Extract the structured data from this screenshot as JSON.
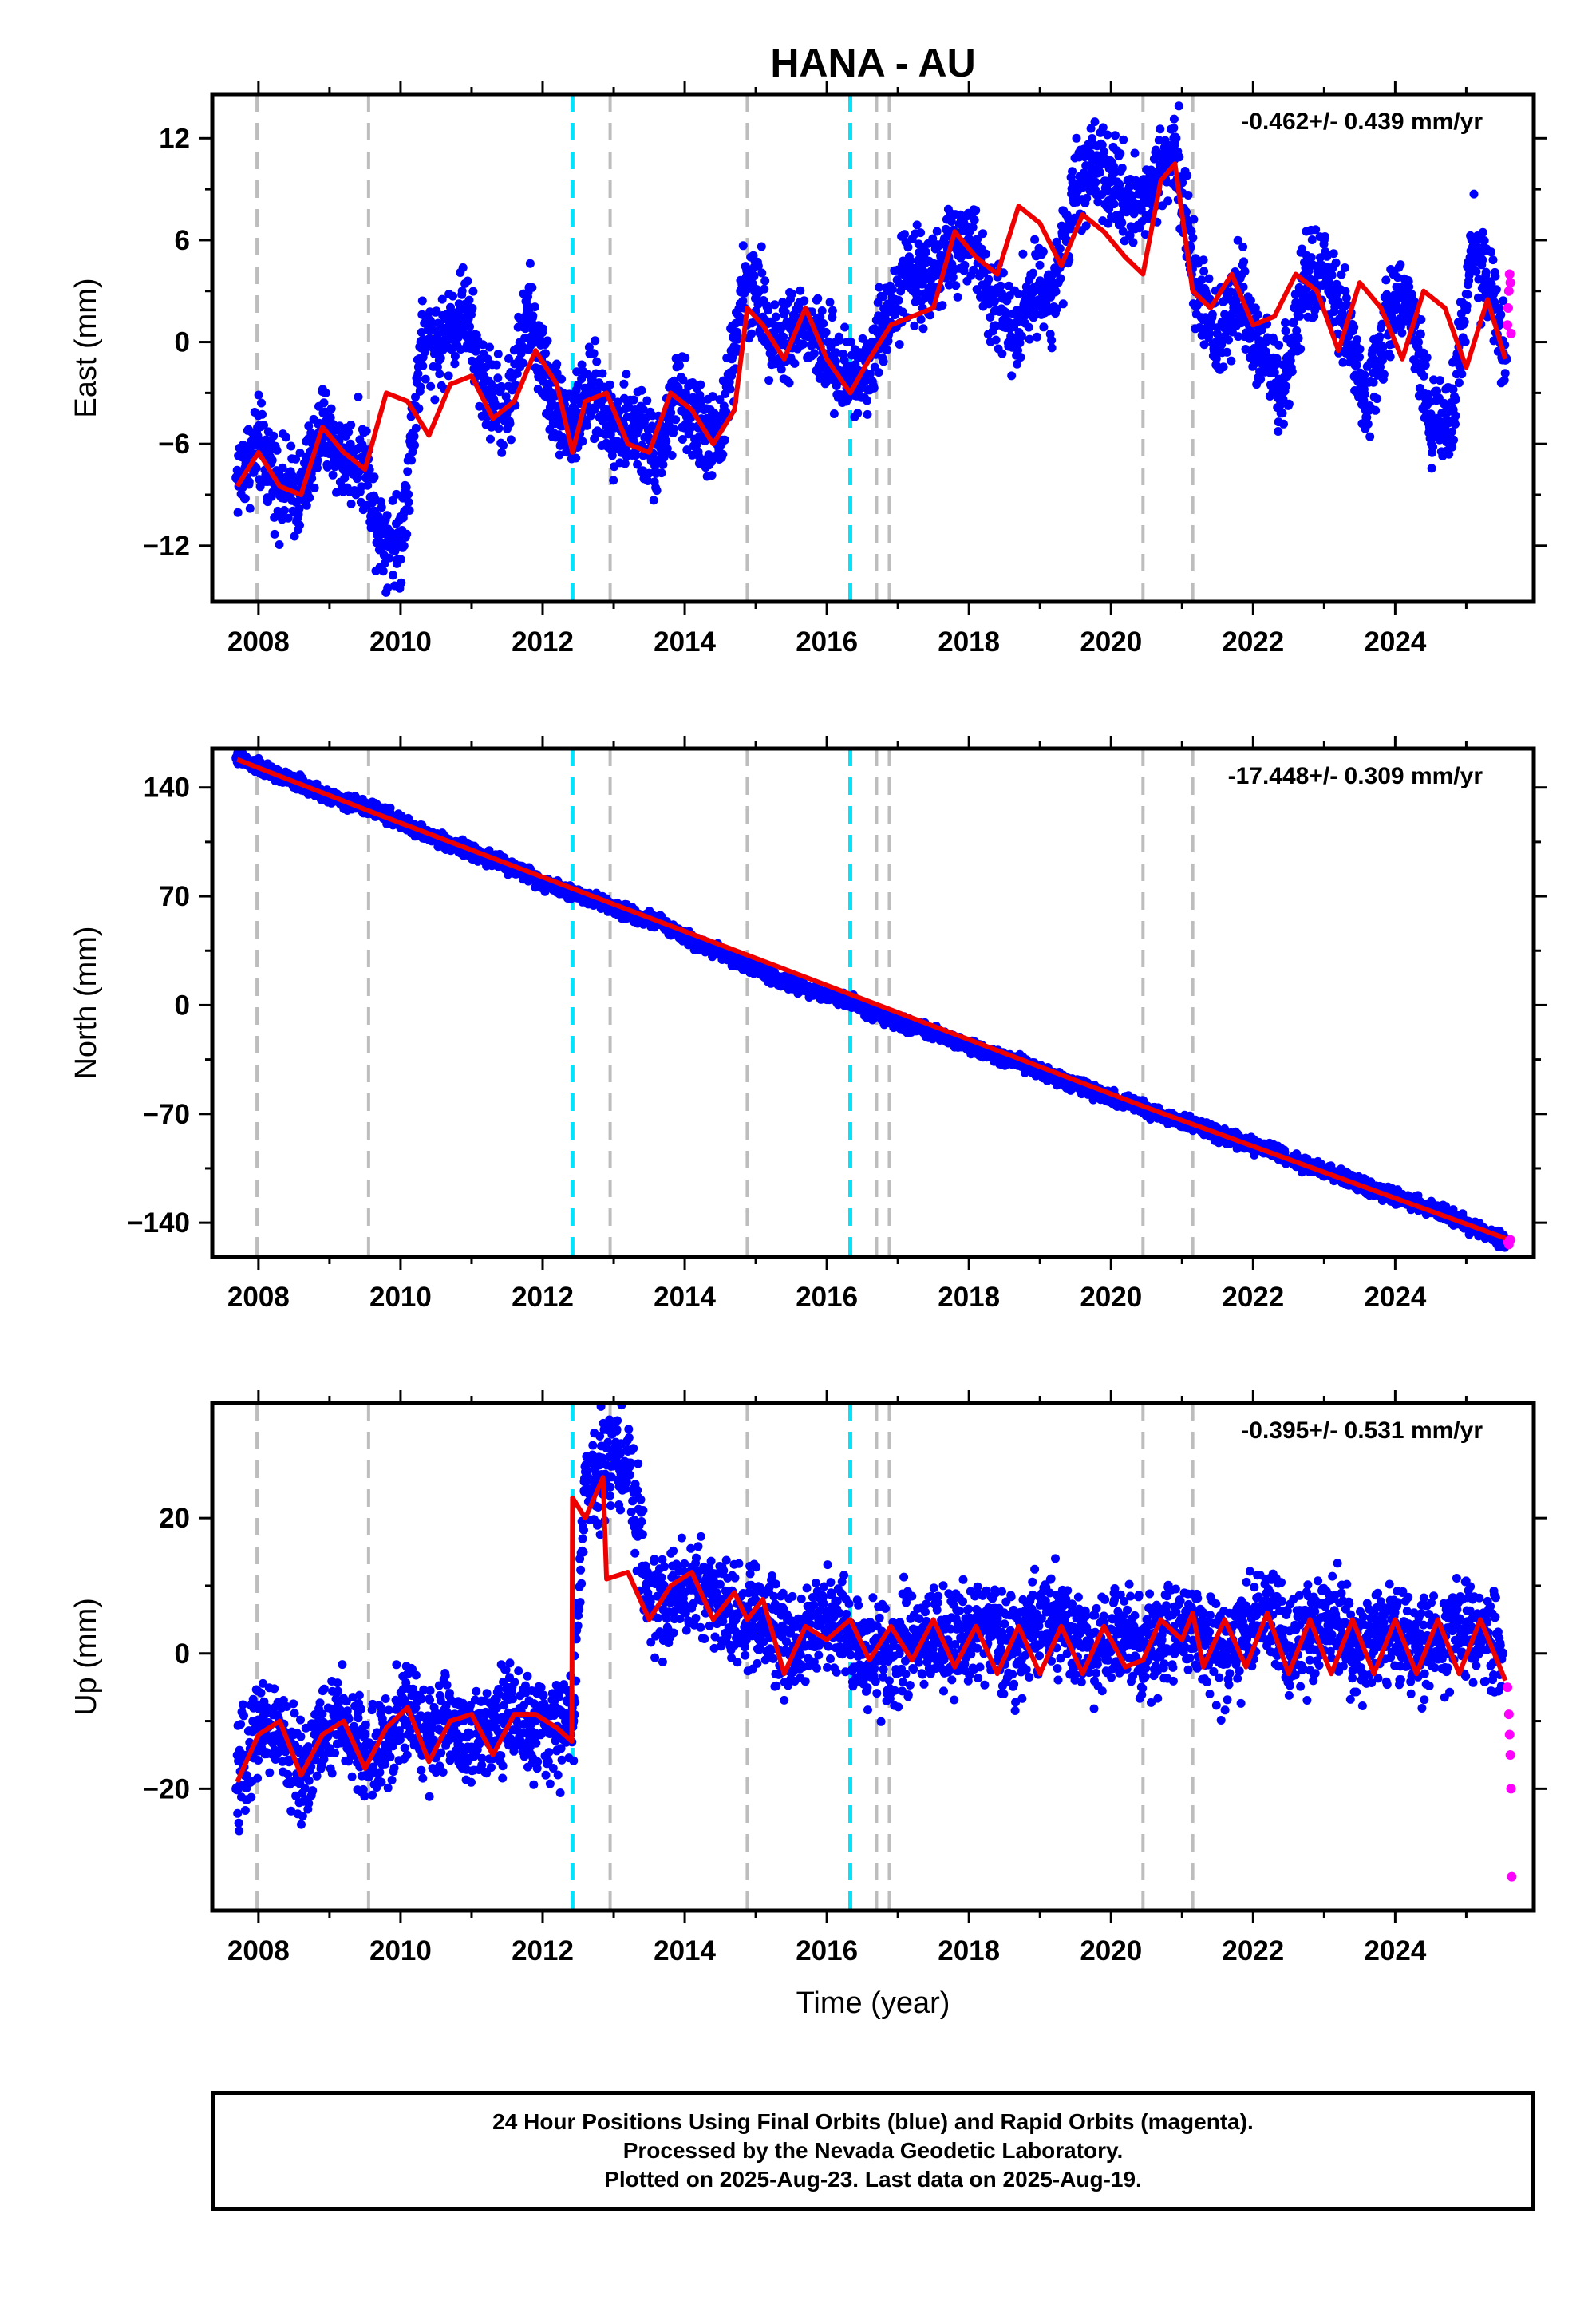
{
  "title": "HANA - AU",
  "footer": {
    "line1": "24 Hour Positions Using Final Orbits (blue) and Rapid Orbits (magenta).",
    "line2": "Processed by the Nevada Geodetic Laboratory.",
    "line3": "Plotted on 2025-Aug-23. Last data on 2025-Aug-19."
  },
  "colors": {
    "final_orbits": "#0000ff",
    "rapid_orbits": "#ff00ff",
    "model_fit": "#ee0000",
    "equipment_change_lines": "#bdbdbd",
    "earthquake_lines": "#00e5ff"
  },
  "chart_data": [
    {
      "type": "scatter",
      "panel": "east",
      "ylabel": "East (mm)",
      "rate": "-0.462+/- 0.439 mm/yr",
      "xlim": [
        2007.35,
        2025.95
      ],
      "ylim": [
        -15.3,
        14.6
      ],
      "xticks": [
        2008,
        2010,
        2012,
        2014,
        2016,
        2018,
        2020,
        2022,
        2024
      ],
      "yticks": [
        -12,
        -6,
        0,
        6,
        12
      ],
      "ytick_labels": [
        "−12",
        "−6",
        "0",
        "6",
        "12"
      ],
      "grey_dashed_lines": [
        2007.98,
        2009.55,
        2012.95,
        2014.88,
        2016.7,
        2016.88,
        2020.45,
        2021.15
      ],
      "cyan_dashed_lines": [
        2012.42,
        2016.33
      ],
      "series": [
        {
          "role": "final-orbits",
          "x": [
            2007.7,
            2008.0,
            2008.3,
            2008.6,
            2008.9,
            2009.2,
            2009.5,
            2009.7,
            2010.0,
            2010.3,
            2010.6,
            2010.9,
            2011.2,
            2011.5,
            2011.8,
            2012.1,
            2012.4,
            2012.7,
            2013.0,
            2013.3,
            2013.6,
            2013.9,
            2014.2,
            2014.5,
            2014.8,
            2015.0,
            2015.3,
            2015.6,
            2015.9,
            2016.2,
            2016.5,
            2016.8,
            2017.1,
            2017.4,
            2017.7,
            2018.0,
            2018.3,
            2018.6,
            2018.9,
            2019.2,
            2019.5,
            2019.8,
            2020.1,
            2020.4,
            2020.7,
            2020.9,
            2021.2,
            2021.5,
            2021.8,
            2022.1,
            2022.4,
            2022.7,
            2023.0,
            2023.3,
            2023.6,
            2023.9,
            2024.2,
            2024.5,
            2024.8,
            2025.1,
            2025.4,
            2025.55
          ],
          "y": [
            -8.0,
            -6.0,
            -8.5,
            -9.0,
            -5.0,
            -7.0,
            -7.0,
            -11.0,
            -12.0,
            0.0,
            0.0,
            2.0,
            -3.0,
            -4.0,
            2.0,
            -3.0,
            -5.0,
            -3.0,
            -5.0,
            -5.0,
            -7.0,
            -3.0,
            -5.0,
            -6.0,
            3.0,
            3.0,
            0.0,
            1.0,
            0.0,
            -2.0,
            -2.0,
            1.0,
            4.0,
            4.0,
            5.0,
            6.0,
            3.0,
            1.0,
            3.0,
            3.0,
            9.0,
            10.0,
            9.0,
            8.0,
            10.0,
            12.0,
            3.0,
            0.0,
            3.0,
            0.0,
            -3.0,
            3.0,
            4.0,
            1.0,
            -4.0,
            2.0,
            2.0,
            -5.0,
            -4.0,
            6.0,
            2.0,
            -1.0
          ]
        },
        {
          "role": "rapid-orbits",
          "x": [
            2025.58,
            2025.59,
            2025.6,
            2025.61,
            2025.62,
            2025.63
          ],
          "y": [
            1.0,
            2.0,
            3.0,
            4.0,
            3.5,
            0.5
          ]
        },
        {
          "role": "model",
          "x": [
            2007.7,
            2008.0,
            2008.3,
            2008.6,
            2008.9,
            2009.2,
            2009.5,
            2009.8,
            2010.1,
            2010.4,
            2010.7,
            2011.0,
            2011.3,
            2011.6,
            2011.9,
            2012.2,
            2012.42,
            2012.6,
            2012.9,
            2013.2,
            2013.5,
            2013.8,
            2014.1,
            2014.4,
            2014.7,
            2014.88,
            2015.1,
            2015.4,
            2015.7,
            2016.0,
            2016.33,
            2016.6,
            2016.9,
            2017.2,
            2017.5,
            2017.8,
            2018.1,
            2018.4,
            2018.7,
            2019.0,
            2019.3,
            2019.6,
            2019.9,
            2020.2,
            2020.45,
            2020.7,
            2020.9,
            2021.15,
            2021.4,
            2021.7,
            2022.0,
            2022.3,
            2022.6,
            2022.9,
            2023.2,
            2023.5,
            2023.8,
            2024.1,
            2024.4,
            2024.7,
            2025.0,
            2025.3,
            2025.55
          ],
          "y": [
            -8.5,
            -6.5,
            -8.5,
            -9.0,
            -5.0,
            -6.5,
            -7.5,
            -3.0,
            -3.5,
            -5.5,
            -2.5,
            -2.0,
            -4.5,
            -3.5,
            -0.5,
            -2.5,
            -6.5,
            -3.5,
            -3.0,
            -6.0,
            -6.5,
            -3.0,
            -4.0,
            -6.0,
            -4.0,
            2.0,
            1.0,
            -1.0,
            2.0,
            -1.0,
            -3.0,
            -1.0,
            1.0,
            1.5,
            2.0,
            6.5,
            5.0,
            4.0,
            8.0,
            7.0,
            4.5,
            7.5,
            6.5,
            5.0,
            4.0,
            9.5,
            10.5,
            3.0,
            2.0,
            4.0,
            1.0,
            1.5,
            4.0,
            3.0,
            -0.5,
            3.5,
            2.0,
            -1.0,
            3.0,
            2.0,
            -1.5,
            2.5,
            -1.0
          ]
        }
      ]
    },
    {
      "type": "scatter",
      "panel": "north",
      "ylabel": "North (mm)",
      "rate": "-17.448+/- 0.309 mm/yr",
      "xlim": [
        2007.35,
        2025.95
      ],
      "ylim": [
        -162,
        165
      ],
      "xticks": [
        2008,
        2010,
        2012,
        2014,
        2016,
        2018,
        2020,
        2022,
        2024
      ],
      "yticks": [
        -140,
        -70,
        0,
        70,
        140
      ],
      "ytick_labels": [
        "−140",
        "−70",
        "0",
        "70",
        "140"
      ],
      "grey_dashed_lines": [
        2007.98,
        2009.55,
        2012.95,
        2014.88,
        2016.7,
        2016.88,
        2020.45,
        2021.15
      ],
      "cyan_dashed_lines": [
        2012.42,
        2016.33
      ],
      "series": [
        {
          "role": "final-orbits",
          "x": [
            2007.7,
            2008.2,
            2008.7,
            2009.2,
            2009.7,
            2010.2,
            2010.7,
            2011.2,
            2011.7,
            2012.2,
            2012.7,
            2013.2,
            2013.7,
            2014.2,
            2014.7,
            2015.2,
            2015.7,
            2016.2,
            2016.7,
            2017.2,
            2017.7,
            2018.2,
            2018.7,
            2019.2,
            2019.7,
            2020.2,
            2020.7,
            2021.2,
            2021.7,
            2022.2,
            2022.7,
            2023.2,
            2023.7,
            2024.2,
            2024.7,
            2025.2,
            2025.55
          ],
          "y": [
            159,
            149,
            140,
            131,
            125,
            113,
            104,
            95,
            86,
            76,
            68,
            60,
            52,
            40,
            30,
            19,
            11,
            4,
            -6,
            -14,
            -21,
            -30,
            -37,
            -46,
            -55,
            -63,
            -70,
            -78,
            -86,
            -93,
            -102,
            -110,
            -119,
            -126,
            -135,
            -145,
            -151
          ]
        },
        {
          "role": "rapid-orbits",
          "x": [
            2025.58,
            2025.6,
            2025.62
          ],
          "y": [
            -152,
            -154,
            -151
          ]
        },
        {
          "role": "model",
          "x": [
            2007.7,
            2009.55,
            2012.42,
            2016.33,
            2020.45,
            2025.55
          ],
          "y": [
            158,
            125,
            75,
            7,
            -65,
            -150
          ]
        }
      ]
    },
    {
      "type": "scatter",
      "panel": "up",
      "ylabel": "Up (mm)",
      "xlabel": "Time (year)",
      "rate": "-0.395+/- 0.531 mm/yr",
      "xlim": [
        2007.35,
        2025.95
      ],
      "ylim": [
        -38,
        37
      ],
      "xticks": [
        2008,
        2010,
        2012,
        2014,
        2016,
        2018,
        2020,
        2022,
        2024
      ],
      "yticks": [
        -20,
        0,
        20
      ],
      "ytick_labels": [
        "−20",
        "0",
        "20"
      ],
      "grey_dashed_lines": [
        2007.98,
        2009.55,
        2012.95,
        2014.88,
        2016.7,
        2016.88,
        2020.45,
        2021.15
      ],
      "cyan_dashed_lines": [
        2012.42,
        2016.33
      ],
      "series": [
        {
          "role": "final-orbits",
          "x": [
            2007.7,
            2008.0,
            2008.3,
            2008.6,
            2008.9,
            2009.2,
            2009.5,
            2009.8,
            2010.1,
            2010.4,
            2010.7,
            2011.0,
            2011.3,
            2011.6,
            2011.9,
            2012.2,
            2012.42,
            2012.6,
            2012.8,
            2013.0,
            2013.2,
            2013.5,
            2013.8,
            2014.1,
            2014.4,
            2014.7,
            2015.0,
            2015.3,
            2015.6,
            2015.9,
            2016.2,
            2016.5,
            2016.8,
            2017.1,
            2017.4,
            2017.7,
            2018.0,
            2018.3,
            2018.6,
            2018.9,
            2019.2,
            2019.5,
            2019.8,
            2020.1,
            2020.4,
            2020.7,
            2021.0,
            2021.3,
            2021.6,
            2021.9,
            2022.2,
            2022.5,
            2022.8,
            2023.1,
            2023.4,
            2023.7,
            2024.0,
            2024.3,
            2024.6,
            2024.9,
            2025.2,
            2025.5
          ],
          "y": [
            -20,
            -10,
            -12,
            -18,
            -12,
            -10,
            -15,
            -14,
            -8,
            -12,
            -10,
            -14,
            -9,
            -9,
            -12,
            -11,
            -10,
            24,
            28,
            29,
            28,
            8,
            8,
            10,
            9,
            5,
            6,
            3,
            2,
            5,
            4,
            0,
            -1,
            2,
            3,
            1,
            2,
            4,
            0,
            3,
            5,
            2,
            0,
            3,
            1,
            2,
            5,
            2,
            0,
            3,
            6,
            1,
            2,
            5,
            0,
            3,
            4,
            1,
            2,
            5,
            2,
            0
          ]
        },
        {
          "role": "rapid-orbits",
          "x": [
            2025.58,
            2025.6,
            2025.61,
            2025.62,
            2025.63,
            2025.64
          ],
          "y": [
            -5,
            -9,
            -12,
            -15,
            -20,
            -33
          ]
        },
        {
          "role": "model",
          "x": [
            2007.7,
            2008.0,
            2008.3,
            2008.6,
            2008.9,
            2009.2,
            2009.5,
            2009.8,
            2010.1,
            2010.4,
            2010.7,
            2011.0,
            2011.3,
            2011.6,
            2011.9,
            2012.2,
            2012.41,
            2012.42,
            2012.6,
            2012.85,
            2012.9,
            2013.2,
            2013.5,
            2013.8,
            2014.1,
            2014.4,
            2014.7,
            2014.88,
            2015.1,
            2015.4,
            2015.7,
            2016.0,
            2016.33,
            2016.6,
            2016.9,
            2017.2,
            2017.5,
            2017.8,
            2018.1,
            2018.4,
            2018.7,
            2019.0,
            2019.3,
            2019.6,
            2019.9,
            2020.2,
            2020.45,
            2020.7,
            2021.0,
            2021.15,
            2021.3,
            2021.6,
            2021.9,
            2022.2,
            2022.5,
            2022.8,
            2023.1,
            2023.4,
            2023.7,
            2024.0,
            2024.3,
            2024.6,
            2024.9,
            2025.2,
            2025.55
          ],
          "y": [
            -19,
            -12,
            -10,
            -18,
            -12,
            -10,
            -17,
            -11,
            -8,
            -16,
            -10,
            -9,
            -15,
            -9,
            -9,
            -11,
            -13,
            23,
            20,
            26,
            11,
            12,
            5,
            10,
            12,
            5,
            9,
            5,
            8,
            -3,
            4,
            2,
            5,
            -1,
            4,
            -1,
            5,
            -2,
            4,
            -3,
            4,
            -3,
            4,
            -3,
            4,
            -2,
            -1,
            5,
            2,
            6,
            -2,
            5,
            -2,
            6,
            -3,
            5,
            -3,
            5,
            -3,
            5,
            -3,
            5,
            -3,
            5,
            -4
          ]
        }
      ]
    }
  ]
}
